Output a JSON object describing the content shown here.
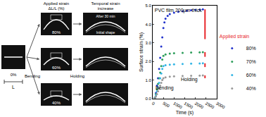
{
  "diagram": {
    "headers": {
      "applied": [
        "Applied strain",
        "ΔL/L (%)"
      ],
      "temporal": [
        "Temporal strain",
        "increase"
      ]
    },
    "start": {
      "label": "0%",
      "length": "L"
    },
    "actions": {
      "bend": "Bending",
      "hold": "Holding"
    },
    "rows": [
      {
        "label": "80%"
      },
      {
        "label": "60%"
      },
      {
        "label": "40%"
      }
    ],
    "zoom_labels": {
      "after": "After 30 min",
      "initial": "Initial shape"
    }
  },
  "chart_data": {
    "type": "scatter",
    "marker": "circle",
    "title": "PVC film 200μm thick",
    "x_label": "Time (s)",
    "y_label": "Surface strain (%)",
    "xlim": [
      0,
      3000
    ],
    "xticks": [
      0,
      500,
      1000,
      1500,
      2000,
      2500,
      3000
    ],
    "ylim": [
      0,
      5
    ],
    "yticks": [
      {
        "value": 0,
        "label": "0.0"
      },
      {
        "value": 1,
        "label": "1.0"
      },
      {
        "value": 2,
        "label": "2.0"
      },
      {
        "value": 3,
        "label": "3.0"
      },
      {
        "value": 4,
        "label": "4.0"
      },
      {
        "value": 5,
        "label": "5.0"
      }
    ],
    "legend": "right",
    "legend_title": "Applied strain",
    "annotations": [
      "Bending",
      "Holding"
    ],
    "series": [
      {
        "name": "80%",
        "color": "#2233cc",
        "x": [
          100,
          150,
          200,
          250,
          300,
          350,
          400,
          450,
          500,
          550,
          600,
          700,
          800,
          1000,
          1200,
          1400,
          1600,
          1800,
          2000,
          2200,
          2350
        ],
        "values": [
          0.05,
          0.3,
          0.7,
          1.1,
          1.6,
          2.2,
          2.8,
          3.3,
          3.8,
          4.1,
          4.3,
          4.45,
          4.55,
          4.62,
          4.67,
          4.7,
          4.73,
          4.75,
          4.77,
          4.78,
          4.8
        ]
      },
      {
        "name": "70%",
        "color": "#2e9e5b",
        "x": [
          100,
          150,
          200,
          250,
          300,
          350,
          400,
          450,
          500,
          600,
          800,
          1000,
          1400,
          1800,
          2200,
          2350
        ],
        "values": [
          0.05,
          0.25,
          0.5,
          0.8,
          1.1,
          1.4,
          1.75,
          2.1,
          2.3,
          2.38,
          2.42,
          2.44,
          2.46,
          2.48,
          2.49,
          2.5
        ]
      },
      {
        "name": "60%",
        "color": "#33b5e5",
        "x": [
          100,
          150,
          200,
          250,
          300,
          350,
          400,
          450,
          500,
          600,
          800,
          1000,
          1400,
          1800,
          2200,
          2350
        ],
        "values": [
          0.04,
          0.2,
          0.4,
          0.6,
          0.85,
          1.1,
          1.35,
          1.6,
          1.75,
          1.8,
          1.83,
          1.85,
          1.87,
          1.88,
          1.89,
          1.9
        ]
      },
      {
        "name": "40%",
        "color": "#999999",
        "x": [
          100,
          150,
          200,
          250,
          300,
          350,
          400,
          450,
          500,
          600,
          800,
          1000,
          1400,
          1800,
          2200,
          2350
        ],
        "values": [
          0.03,
          0.12,
          0.25,
          0.4,
          0.55,
          0.7,
          0.85,
          1.0,
          1.1,
          1.15,
          1.18,
          1.2,
          1.22,
          1.23,
          1.24,
          1.25
        ]
      }
    ],
    "increase_bars": [
      {
        "series": "80%",
        "x": 2450,
        "low": 3.2,
        "high": 4.8,
        "color": "#e8262a"
      },
      {
        "series": "70%",
        "x": 2450,
        "low": 2.25,
        "high": 2.5,
        "color": "#e8262a"
      },
      {
        "series": "60%",
        "x": 2450,
        "low": 1.7,
        "high": 1.9,
        "color": "#e8262a"
      },
      {
        "series": "40%",
        "x": 2450,
        "low": 1.1,
        "high": 1.25,
        "color": "#e8262a"
      }
    ]
  }
}
